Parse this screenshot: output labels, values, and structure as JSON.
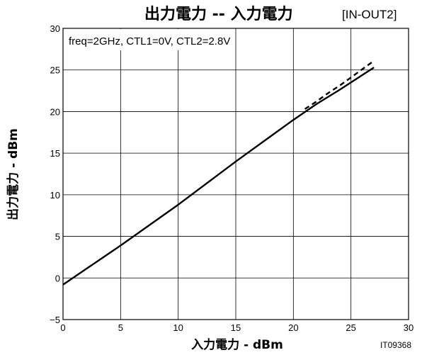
{
  "chart_data": {
    "type": "line",
    "title": "出力電力 -- 入力電力",
    "title_tag": "[IN-OUT2]",
    "xlabel": "入力電力 - dBm",
    "ylabel": "出力電力 - dBm",
    "annotation": "freq=2GHz, CTL1=0V, CTL2=2.8V",
    "figure_id": "IT09368",
    "xlim": [
      0,
      30
    ],
    "ylim": [
      -5,
      30
    ],
    "x_ticks": [
      0,
      5,
      10,
      15,
      20,
      25,
      30
    ],
    "y_ticks": [
      -5,
      0,
      5,
      10,
      15,
      20,
      25,
      30
    ],
    "x_tick_labels": [
      "0",
      "5",
      "10",
      "15",
      "20",
      "25",
      "30"
    ],
    "y_tick_labels": [
      "−5",
      "0",
      "5",
      "10",
      "15",
      "20",
      "25",
      "30"
    ],
    "grid": true,
    "series": [
      {
        "style": "solid",
        "x": [
          0,
          5,
          10,
          15,
          20,
          22,
          24,
          26,
          27
        ],
        "y": [
          -0.8,
          3.9,
          8.8,
          14.0,
          19.0,
          20.9,
          22.6,
          24.4,
          25.3
        ]
      },
      {
        "style": "dashed",
        "x": [
          21,
          22,
          23,
          24,
          25,
          26,
          27
        ],
        "y": [
          20.3,
          21.2,
          22.2,
          23.1,
          24.1,
          25.1,
          26.1
        ]
      }
    ]
  }
}
